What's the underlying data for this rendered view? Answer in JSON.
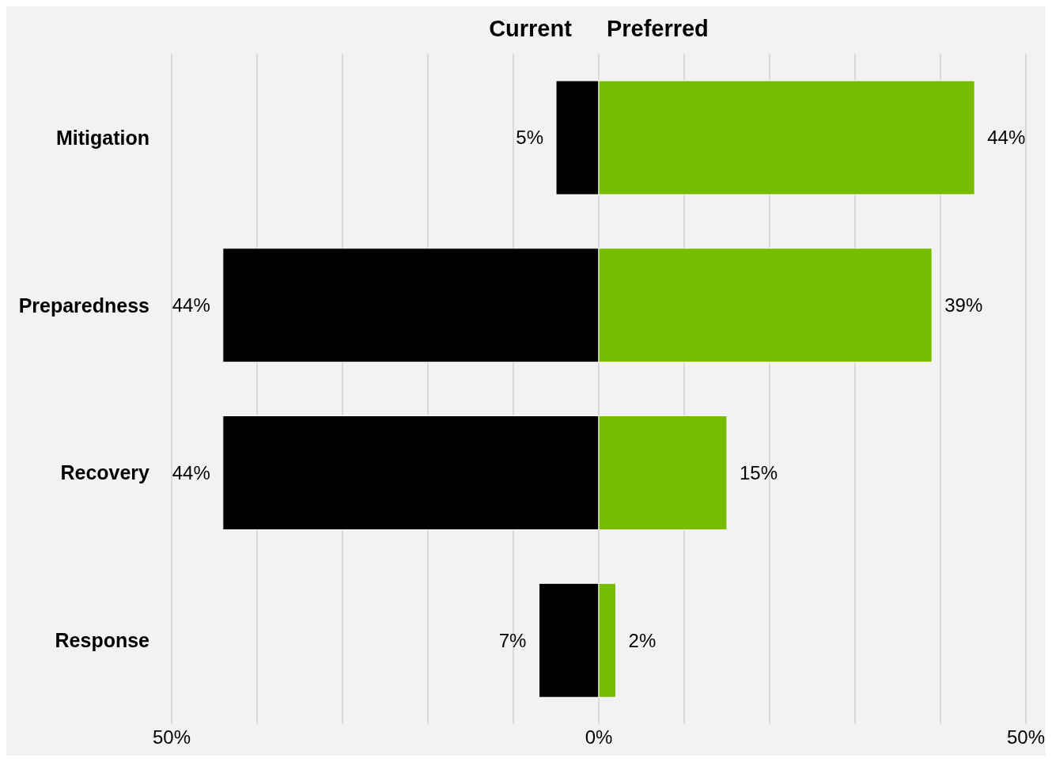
{
  "chart_data": {
    "type": "bar",
    "orientation": "horizontal",
    "categories": [
      "Mitigation",
      "Preparedness",
      "Recovery",
      "Response"
    ],
    "series": [
      {
        "name": "Current",
        "color": "#000000",
        "base": [
          -5,
          -44,
          -44,
          -7
        ],
        "values": [
          5,
          44,
          44,
          7
        ],
        "value_labels": [
          "5%",
          "44%",
          "44%",
          "7%"
        ]
      },
      {
        "name": "Preferred",
        "color": "#76bc00",
        "values": [
          44,
          39,
          15,
          2
        ],
        "value_labels": [
          "44%",
          "39%",
          "15%",
          "2%"
        ]
      }
    ],
    "xlim": [
      -50,
      50
    ],
    "xticks": [
      {
        "value": -50,
        "label": "50%"
      },
      {
        "value": -40,
        "label": null
      },
      {
        "value": -30,
        "label": null
      },
      {
        "value": -20,
        "label": null
      },
      {
        "value": -10,
        "label": null
      },
      {
        "value": 0,
        "label": "0%"
      },
      {
        "value": 10,
        "label": null
      },
      {
        "value": 20,
        "label": null
      },
      {
        "value": 30,
        "label": null
      },
      {
        "value": 40,
        "label": null
      },
      {
        "value": 50,
        "label": "50%"
      }
    ],
    "grid": "x",
    "legend": "top"
  }
}
